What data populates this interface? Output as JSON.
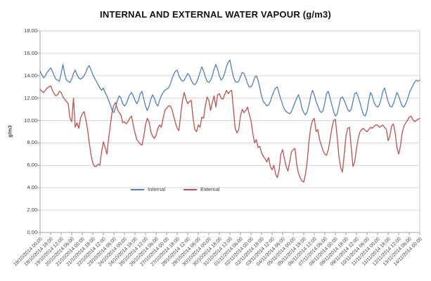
{
  "chart_data": {
    "type": "line",
    "title": "INTERNAL AND EXTERNAL WATER VAPOUR (g/m3)",
    "xlabel": "",
    "ylabel": "g/m3",
    "ylim": [
      0,
      18
    ],
    "ytick_step": 2,
    "ytick_labels": [
      "0.00",
      "2.00",
      "4.00",
      "6.00",
      "8.00",
      "10.00",
      "12.00",
      "14.00",
      "16.00",
      "18.00"
    ],
    "grid": true,
    "legend_position": "bottom-inside",
    "x_start": "18/10/2014 00:00",
    "x_end": "14/11/2014 00:00",
    "x_sample_interval_hours": 3,
    "xtick_interval_hours": 18,
    "xtick_labels": [
      "18/10/2014 00:00",
      "18/10/2014 18:00",
      "19/10/2014 12:00",
      "20/10/2014 06:00",
      "21/10/2014 00:00",
      "21/10/2014 18:00",
      "22/10/2014 12:00",
      "23/10/2014 06:00",
      "24/10/2014 00:00",
      "24/10/2014 18:00",
      "25/10/2014 12:00",
      "26/10/2014 06:00",
      "27/10/2014 00:00",
      "27/10/2014 18:00",
      "28/10/2014 12:00",
      "29/10/2014 06:00",
      "30/10/2014 00:00",
      "30/10/2014 18:00",
      "31/10/2014 12:00",
      "01/11/2014 06:00",
      "02/11/2014 00:00",
      "02/11/2014 18:00",
      "03/11/2014 12:00",
      "04/11/2014 06:00",
      "05/11/2014 00:00",
      "05/11/2014 18:00",
      "06/11/2014 12:00",
      "07/11/2014 06:00",
      "08/11/2014 00:00",
      "08/11/2014 18:00",
      "09/11/2014 12:00",
      "10/11/2014 06:00",
      "11/11/2014 00:00",
      "11/11/2014 18:00",
      "12/11/2014 12:00",
      "13/11/2014 06:00",
      "14/11/2014 00:00"
    ],
    "colors": {
      "gridline": "#D9D9D9",
      "axis": "#A6A6A6",
      "plot_border": "#C8C8C8",
      "text": "#3f3f3f"
    },
    "series": [
      {
        "name": "Internal",
        "color": "#4F81BD",
        "values": [
          14.4,
          14.1,
          13.8,
          14.0,
          14.3,
          14.5,
          14.7,
          14.4,
          14.0,
          13.7,
          13.6,
          13.5,
          14.2,
          15.0,
          14.2,
          13.6,
          13.5,
          13.4,
          13.7,
          14.2,
          14.5,
          14.1,
          13.8,
          13.7,
          13.8,
          14.0,
          14.3,
          14.7,
          14.9,
          14.5,
          14.1,
          13.8,
          13.5,
          13.2,
          12.9,
          12.7,
          12.9,
          12.5,
          12.2,
          11.8,
          11.4,
          10.9,
          10.7,
          11.2,
          11.8,
          12.2,
          12.0,
          11.5,
          11.3,
          11.5,
          11.9,
          12.3,
          12.5,
          12.2,
          11.8,
          11.5,
          11.8,
          12.4,
          12.6,
          11.9,
          11.3,
          10.9,
          11.3,
          11.9,
          12.3,
          12.0,
          11.5,
          11.3,
          11.8,
          12.2,
          12.5,
          12.7,
          12.8,
          12.9,
          13.2,
          13.7,
          14.1,
          14.4,
          14.5,
          14.0,
          13.7,
          13.5,
          13.6,
          13.9,
          14.2,
          14.0,
          13.6,
          13.3,
          13.2,
          13.4,
          13.8,
          14.3,
          14.8,
          14.4,
          13.9,
          13.5,
          13.4,
          13.6,
          14.0,
          14.6,
          15.0,
          14.6,
          14.0,
          13.6,
          13.8,
          14.2,
          14.8,
          15.2,
          15.4,
          14.6,
          13.9,
          13.5,
          13.4,
          13.5,
          13.9,
          14.3,
          14.2,
          13.8,
          13.3,
          13.0,
          13.0,
          13.3,
          13.8,
          14.0,
          13.6,
          12.9,
          12.2,
          11.7,
          11.5,
          11.3,
          11.4,
          11.7,
          12.2,
          12.6,
          12.9,
          13.0,
          12.4,
          11.9,
          11.4,
          11.0,
          10.8,
          10.7,
          10.6,
          10.8,
          11.2,
          11.6,
          12.0,
          12.3,
          11.8,
          11.1,
          10.7,
          10.5,
          10.8,
          11.4,
          12.2,
          12.7,
          12.3,
          11.7,
          11.3,
          10.9,
          10.7,
          10.9,
          11.6,
          12.4,
          12.6,
          12.0,
          11.4,
          10.8,
          10.4,
          10.6,
          11.3,
          12.0,
          12.1,
          11.8,
          11.4,
          11.0,
          10.8,
          11.0,
          11.7,
          12.4,
          12.5,
          12.1,
          11.6,
          11.0,
          10.5,
          10.4,
          10.9,
          11.8,
          12.5,
          12.2,
          11.6,
          11.3,
          11.2,
          11.4,
          11.9,
          12.6,
          12.9,
          12.3,
          11.7,
          11.3,
          11.2,
          11.5,
          12.0,
          12.5,
          12.2,
          11.7,
          11.3,
          11.2,
          11.5,
          11.9,
          12.4,
          12.8,
          13.1,
          13.4,
          13.6,
          13.5,
          13.6
        ]
      },
      {
        "name": "External",
        "color": "#C0504D",
        "values": [
          12.8,
          12.6,
          12.5,
          12.7,
          12.9,
          13.0,
          13.1,
          12.7,
          12.4,
          12.2,
          12.3,
          12.6,
          12.5,
          12.1,
          11.9,
          11.7,
          11.5,
          10.2,
          9.9,
          12.0,
          9.4,
          9.8,
          9.3,
          10.2,
          10.6,
          10.8,
          10.1,
          9.2,
          8.0,
          6.9,
          6.2,
          5.9,
          5.9,
          6.1,
          6.0,
          7.2,
          8.1,
          7.6,
          7.0,
          8.4,
          9.6,
          10.8,
          11.4,
          11.6,
          11.0,
          10.7,
          10.5,
          9.8,
          9.9,
          9.7,
          9.9,
          10.2,
          10.4,
          9.6,
          8.9,
          8.3,
          8.1,
          7.9,
          7.8,
          8.6,
          9.6,
          10.2,
          9.9,
          9.0,
          8.6,
          8.4,
          8.7,
          9.3,
          9.6,
          9.4,
          10.2,
          10.9,
          11.1,
          11.3,
          11.3,
          11.0,
          10.4,
          9.8,
          9.3,
          9.1,
          10.5,
          11.8,
          12.5,
          11.9,
          11.5,
          11.7,
          11.8,
          10.3,
          9.2,
          9.0,
          9.6,
          9.4,
          10.3,
          10.2,
          11.3,
          12.1,
          11.8,
          10.9,
          11.6,
          12.2,
          11.2,
          12.3,
          12.4,
          12.0,
          11.9,
          12.3,
          12.7,
          12.4,
          12.6,
          12.7,
          11.0,
          9.3,
          8.9,
          9.2,
          10.4,
          11.0,
          10.7,
          10.9,
          11.2,
          10.6,
          10.0,
          8.9,
          8.0,
          8.3,
          7.6,
          7.7,
          7.1,
          6.8,
          6.6,
          6.3,
          6.7,
          5.9,
          5.6,
          6.0,
          5.2,
          4.9,
          5.6,
          7.0,
          7.4,
          6.6,
          5.9,
          5.5,
          6.3,
          7.2,
          7.4,
          7.5,
          6.1,
          5.3,
          4.9,
          4.6,
          4.5,
          5.2,
          6.4,
          8.2,
          9.4,
          10.0,
          10.2,
          9.0,
          9.2,
          8.3,
          7.8,
          7.3,
          7.0,
          6.9,
          7.4,
          8.3,
          9.3,
          10.0,
          10.1,
          8.6,
          6.8,
          5.8,
          5.4,
          6.9,
          8.6,
          9.3,
          9.4,
          7.6,
          5.9,
          6.3,
          7.5,
          8.4,
          9.0,
          9.2,
          9.3,
          9.1,
          9.0,
          9.2,
          9.4,
          9.3,
          9.5,
          9.6,
          9.6,
          9.4,
          9.5,
          9.6,
          9.4,
          9.2,
          8.2,
          8.6,
          9.5,
          9.7,
          8.9,
          7.6,
          7.0,
          7.7,
          8.9,
          9.5,
          9.8,
          10.0,
          10.3,
          10.4,
          10.1,
          9.9,
          10.0,
          10.1,
          10.2
        ]
      }
    ]
  }
}
